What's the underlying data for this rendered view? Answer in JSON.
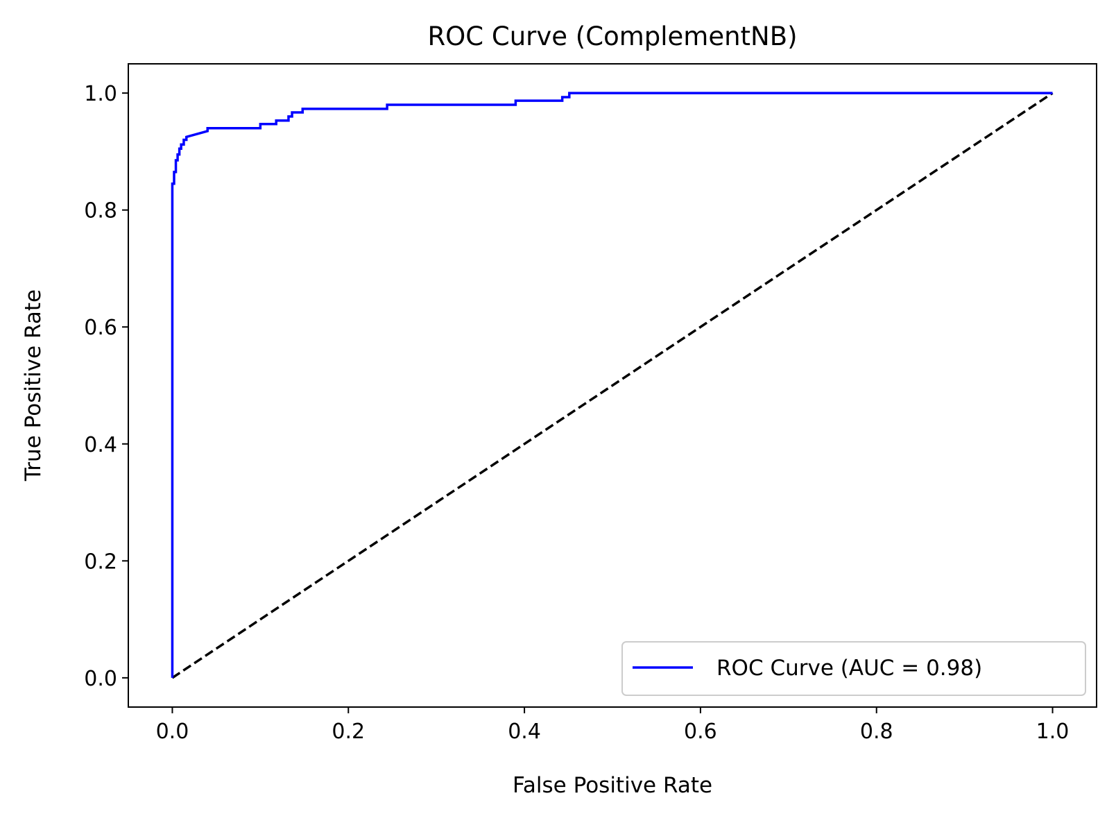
{
  "chart_data": {
    "type": "line",
    "title": "ROC Curve (ComplementNB)",
    "xlabel": "False Positive Rate",
    "ylabel": "True Positive Rate",
    "xlim": [
      -0.05,
      1.05
    ],
    "ylim": [
      -0.05,
      1.05
    ],
    "xticks": [
      0.0,
      0.2,
      0.4,
      0.6,
      0.8,
      1.0
    ],
    "xtick_labels": [
      "0.0",
      "0.2",
      "0.4",
      "0.6",
      "0.8",
      "1.0"
    ],
    "yticks": [
      0.0,
      0.2,
      0.4,
      0.6,
      0.8,
      1.0
    ],
    "ytick_labels": [
      "0.0",
      "0.2",
      "0.4",
      "0.6",
      "0.8",
      "1.0"
    ],
    "grid": false,
    "legend_position": "lower-right",
    "series": [
      {
        "name": "ROC Curve (AUC = 0.98)",
        "color": "#0000ff",
        "style": "solid",
        "x": [
          0.0,
          0.0,
          0.002,
          0.002,
          0.004,
          0.004,
          0.006,
          0.006,
          0.008,
          0.008,
          0.01,
          0.01,
          0.013,
          0.013,
          0.016,
          0.016,
          0.04,
          0.04,
          0.1,
          0.1,
          0.118,
          0.118,
          0.132,
          0.132,
          0.136,
          0.136,
          0.148,
          0.148,
          0.244,
          0.244,
          0.39,
          0.39,
          0.443,
          0.443,
          0.451,
          0.451,
          1.0
        ],
        "y": [
          0.0,
          0.845,
          0.845,
          0.865,
          0.865,
          0.885,
          0.885,
          0.895,
          0.895,
          0.905,
          0.905,
          0.912,
          0.912,
          0.92,
          0.92,
          0.925,
          0.935,
          0.94,
          0.94,
          0.947,
          0.947,
          0.953,
          0.953,
          0.96,
          0.96,
          0.967,
          0.967,
          0.973,
          0.973,
          0.98,
          0.98,
          0.987,
          0.987,
          0.993,
          0.993,
          1.0,
          1.0
        ]
      },
      {
        "name": "",
        "color": "#000000",
        "style": "dashed",
        "x": [
          0.0,
          1.0
        ],
        "y": [
          0.0,
          1.0
        ]
      }
    ]
  }
}
